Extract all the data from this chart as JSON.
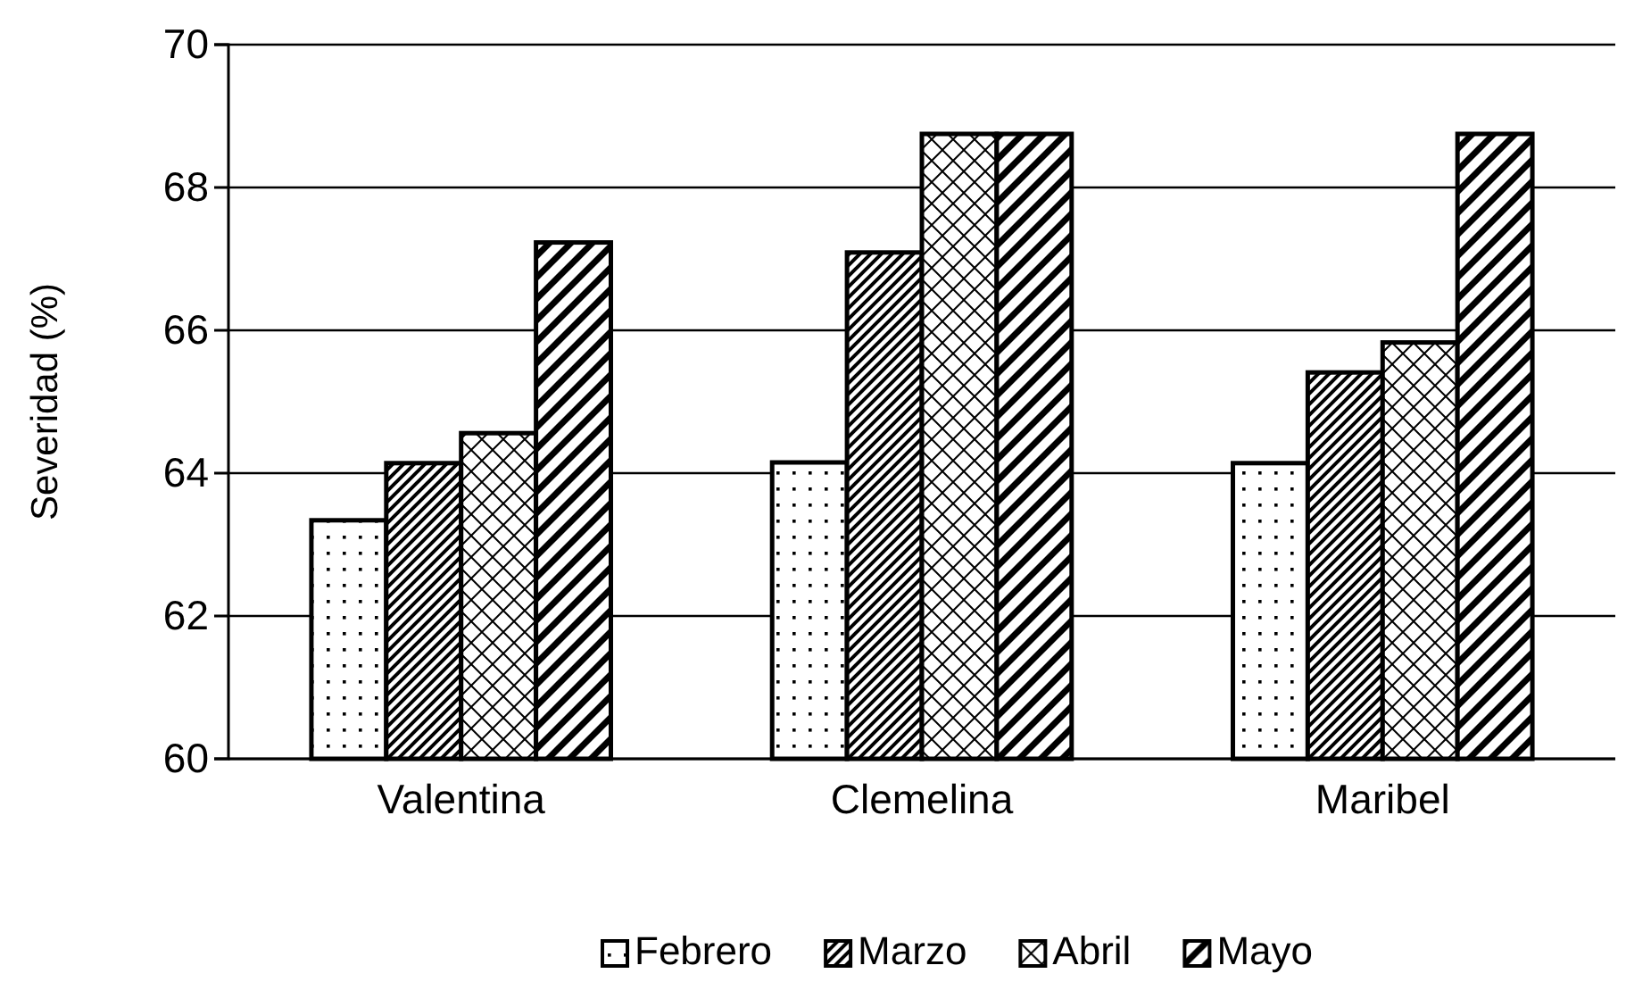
{
  "chart_data": {
    "type": "bar",
    "ylabel": "Severidad (%)",
    "categories": [
      "Valentina",
      "Clemelina",
      "Maribel"
    ],
    "series": [
      {
        "name": "Febrero",
        "color": "#000000",
        "values": [
          63.34,
          64.15,
          64.14
        ]
      },
      {
        "name": "Marzo",
        "color": "#000000",
        "values": [
          64.14,
          67.09,
          65.41
        ]
      },
      {
        "name": "Abril",
        "color": "#000000",
        "values": [
          64.56,
          68.75,
          65.83
        ]
      },
      {
        "name": "Mayo",
        "color": "#000000",
        "values": [
          67.23,
          68.75,
          68.75
        ]
      }
    ],
    "ylim": [
      60,
      70
    ],
    "yticks": [
      60,
      62,
      64,
      66,
      68,
      70
    ],
    "grid": "y",
    "legend": "bottom"
  }
}
